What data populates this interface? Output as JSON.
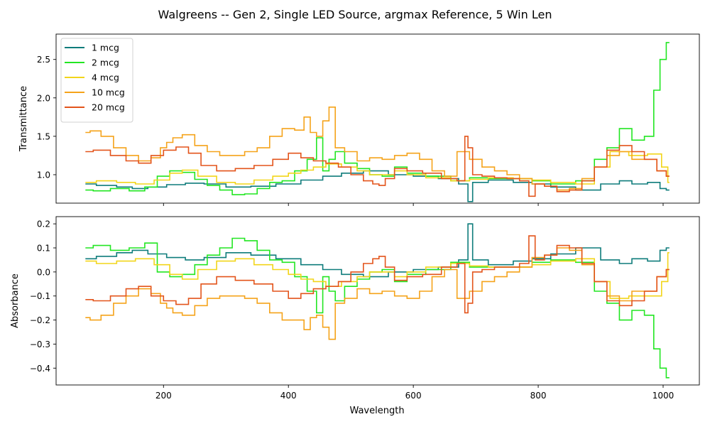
{
  "figure": {
    "title": "Walgreens -- Gen 2, Single LED Source, argmax Reference, 5 Win Len",
    "xlabel": "Wavelength"
  },
  "chart_data": [
    {
      "type": "line",
      "step": true,
      "ylabel": "Transmittance",
      "xlim": [
        28,
        1058
      ],
      "ylim": [
        0.63,
        2.83
      ],
      "xticks": [
        200,
        400,
        600,
        800,
        1000
      ],
      "xticklabels": [
        "",
        "",
        "",
        "",
        ""
      ],
      "yticks": [
        1.0,
        1.5,
        2.0,
        2.5
      ],
      "yticklabels": [
        "1.0",
        "1.5",
        "2.0",
        "2.5"
      ],
      "legend": "top-left",
      "grid": false,
      "series": [
        {
          "name": "1 mcg",
          "color": "#0e7c7b",
          "x": [
            75,
            110,
            140,
            160,
            190,
            220,
            250,
            280,
            320,
            360,
            400,
            440,
            470,
            500,
            540,
            580,
            620,
            660,
            685,
            690,
            700,
            740,
            780,
            800,
            840,
            880,
            920,
            940,
            960,
            990,
            1000,
            1010
          ],
          "y": [
            0.88,
            0.86,
            0.84,
            0.82,
            0.84,
            0.87,
            0.89,
            0.88,
            0.84,
            0.85,
            0.88,
            0.93,
            0.98,
            1.02,
            1.05,
            1.0,
            0.98,
            0.95,
            0.88,
            0.65,
            0.9,
            0.93,
            0.9,
            0.88,
            0.84,
            0.8,
            0.88,
            0.92,
            0.88,
            0.9,
            0.82,
            0.8
          ]
        },
        {
          "name": "2 mcg",
          "color": "#22e622",
          "x": [
            75,
            100,
            130,
            160,
            180,
            200,
            220,
            240,
            260,
            280,
            300,
            320,
            340,
            360,
            380,
            400,
            420,
            440,
            450,
            460,
            470,
            480,
            500,
            520,
            540,
            560,
            580,
            600,
            640,
            680,
            700,
            740,
            780,
            800,
            840,
            880,
            900,
            920,
            940,
            960,
            980,
            990,
            1000,
            1010
          ],
          "y": [
            0.8,
            0.79,
            0.82,
            0.79,
            0.84,
            0.98,
            1.05,
            1.03,
            0.94,
            0.86,
            0.8,
            0.74,
            0.75,
            0.82,
            0.9,
            0.92,
            1.05,
            1.2,
            1.48,
            1.05,
            1.2,
            1.3,
            1.15,
            1.08,
            1.0,
            0.98,
            1.1,
            1.02,
            0.98,
            0.92,
            0.96,
            0.95,
            0.95,
            0.92,
            0.88,
            0.92,
            1.2,
            1.35,
            1.6,
            1.45,
            1.5,
            2.1,
            2.5,
            2.72
          ]
        },
        {
          "name": "4 mcg",
          "color": "#f2d51a",
          "x": [
            75,
            110,
            140,
            170,
            200,
            220,
            240,
            270,
            300,
            330,
            360,
            390,
            410,
            430,
            450,
            470,
            500,
            520,
            540,
            560,
            580,
            600,
            640,
            680,
            700,
            740,
            780,
            800,
            840,
            880,
            900,
            930,
            960,
            990,
            1005,
            1010
          ],
          "y": [
            0.9,
            0.92,
            0.9,
            0.88,
            0.93,
            1.02,
            1.06,
            0.98,
            0.9,
            0.88,
            0.93,
            0.98,
            1.02,
            1.06,
            1.1,
            1.14,
            1.1,
            1.05,
            1.0,
            1.0,
            1.05,
            1.0,
            0.96,
            0.92,
            0.94,
            0.96,
            0.95,
            0.93,
            0.9,
            0.88,
            1.1,
            1.3,
            1.25,
            1.27,
            1.1,
            0.9
          ]
        },
        {
          "name": "10 mcg",
          "color": "#f5a31a",
          "x": [
            75,
            90,
            110,
            130,
            150,
            170,
            190,
            200,
            210,
            220,
            240,
            260,
            280,
            300,
            320,
            340,
            360,
            380,
            400,
            420,
            430,
            440,
            450,
            460,
            470,
            480,
            500,
            520,
            540,
            560,
            580,
            600,
            620,
            640,
            660,
            680,
            700,
            720,
            740,
            760,
            780,
            800,
            820,
            840,
            860,
            880,
            900,
            920,
            940,
            960,
            980,
            1000,
            1010
          ],
          "y": [
            1.55,
            1.57,
            1.5,
            1.35,
            1.25,
            1.18,
            1.22,
            1.35,
            1.42,
            1.48,
            1.52,
            1.38,
            1.3,
            1.25,
            1.25,
            1.3,
            1.35,
            1.5,
            1.6,
            1.58,
            1.75,
            1.55,
            1.5,
            1.7,
            1.88,
            1.35,
            1.3,
            1.18,
            1.22,
            1.2,
            1.25,
            1.28,
            1.2,
            1.05,
            0.98,
            1.3,
            1.2,
            1.1,
            1.05,
            1.0,
            0.95,
            0.88,
            0.85,
            0.8,
            0.82,
            0.95,
            1.1,
            1.25,
            1.3,
            1.2,
            1.2,
            1.05,
            0.98
          ]
        },
        {
          "name": "20 mcg",
          "color": "#e3541b",
          "x": [
            75,
            100,
            130,
            150,
            170,
            190,
            210,
            230,
            250,
            270,
            300,
            330,
            360,
            390,
            410,
            430,
            450,
            470,
            490,
            510,
            530,
            540,
            550,
            560,
            580,
            600,
            630,
            660,
            680,
            685,
            690,
            700,
            720,
            740,
            760,
            780,
            790,
            800,
            820,
            840,
            860,
            880,
            900,
            920,
            940,
            960,
            980,
            1000,
            1010
          ],
          "y": [
            1.3,
            1.32,
            1.25,
            1.18,
            1.15,
            1.25,
            1.32,
            1.36,
            1.28,
            1.12,
            1.05,
            1.08,
            1.12,
            1.2,
            1.28,
            1.22,
            1.18,
            1.15,
            1.1,
            1.0,
            0.92,
            0.88,
            0.86,
            0.95,
            1.08,
            1.05,
            1.02,
            0.95,
            0.92,
            1.5,
            1.35,
            1.0,
            0.98,
            0.96,
            0.95,
            0.92,
            0.72,
            0.88,
            0.85,
            0.78,
            0.8,
            0.92,
            1.1,
            1.32,
            1.38,
            1.3,
            1.2,
            1.05,
            0.98
          ]
        }
      ]
    },
    {
      "type": "line",
      "step": true,
      "ylabel": "Absorbance",
      "xlabel": "Wavelength",
      "xlim": [
        28,
        1058
      ],
      "ylim": [
        -0.47,
        0.23
      ],
      "xticks": [
        200,
        400,
        600,
        800,
        1000
      ],
      "xticklabels": [
        "200",
        "400",
        "600",
        "800",
        "1000"
      ],
      "yticks": [
        0.2,
        0.1,
        0.0,
        -0.1,
        -0.2,
        -0.3,
        -0.4
      ],
      "yticklabels": [
        "0.2",
        "0.1",
        "0.0",
        "−0.1",
        "−0.2",
        "−0.3",
        "−0.4"
      ],
      "grid": false,
      "series": [
        {
          "name": "1 mcg",
          "color": "#0e7c7b",
          "x": [
            75,
            110,
            140,
            160,
            190,
            220,
            250,
            280,
            320,
            360,
            400,
            440,
            470,
            500,
            540,
            580,
            620,
            660,
            685,
            690,
            700,
            740,
            780,
            800,
            840,
            880,
            920,
            940,
            960,
            990,
            1000,
            1010
          ],
          "y": [
            0.055,
            0.065,
            0.08,
            0.09,
            0.075,
            0.06,
            0.05,
            0.06,
            0.08,
            0.07,
            0.055,
            0.03,
            0.01,
            -0.01,
            -0.02,
            0.0,
            0.01,
            0.02,
            0.05,
            0.2,
            0.05,
            0.03,
            0.045,
            0.055,
            0.075,
            0.1,
            0.05,
            0.035,
            0.055,
            0.045,
            0.09,
            0.1
          ]
        },
        {
          "name": "2 mcg",
          "color": "#22e622",
          "x": [
            75,
            100,
            130,
            160,
            180,
            200,
            220,
            240,
            260,
            280,
            300,
            320,
            340,
            360,
            380,
            400,
            420,
            440,
            450,
            460,
            470,
            480,
            500,
            520,
            540,
            560,
            580,
            600,
            640,
            680,
            700,
            740,
            780,
            800,
            840,
            880,
            900,
            920,
            940,
            960,
            980,
            990,
            1000,
            1010
          ],
          "y": [
            0.1,
            0.11,
            0.09,
            0.1,
            0.12,
            0.0,
            -0.02,
            -0.01,
            0.03,
            0.07,
            0.1,
            0.14,
            0.13,
            0.09,
            0.05,
            0.04,
            -0.02,
            -0.08,
            -0.17,
            -0.02,
            -0.08,
            -0.12,
            -0.06,
            -0.03,
            0.0,
            0.01,
            -0.04,
            -0.01,
            0.01,
            0.04,
            0.02,
            0.02,
            0.02,
            0.04,
            0.05,
            0.04,
            -0.08,
            -0.13,
            -0.2,
            -0.16,
            -0.18,
            -0.32,
            -0.4,
            -0.44
          ]
        },
        {
          "name": "4 mcg",
          "color": "#f2d51a",
          "x": [
            75,
            110,
            140,
            170,
            200,
            220,
            240,
            270,
            300,
            330,
            360,
            390,
            410,
            430,
            450,
            470,
            500,
            520,
            540,
            560,
            580,
            600,
            640,
            680,
            700,
            740,
            780,
            800,
            840,
            880,
            900,
            930,
            960,
            990,
            1005,
            1010
          ],
          "y": [
            0.045,
            0.035,
            0.045,
            0.055,
            0.03,
            -0.01,
            -0.03,
            0.01,
            0.045,
            0.055,
            0.03,
            0.01,
            -0.01,
            -0.03,
            -0.04,
            -0.06,
            -0.04,
            -0.02,
            0.0,
            0.0,
            -0.02,
            0.0,
            0.02,
            0.035,
            0.025,
            0.02,
            0.02,
            0.03,
            0.045,
            0.055,
            -0.04,
            -0.11,
            -0.1,
            -0.1,
            -0.04,
            0.08
          ]
        },
        {
          "name": "10 mcg",
          "color": "#f5a31a",
          "x": [
            75,
            90,
            110,
            130,
            150,
            170,
            190,
            200,
            210,
            220,
            240,
            260,
            280,
            300,
            320,
            340,
            360,
            380,
            400,
            420,
            430,
            440,
            450,
            460,
            470,
            480,
            500,
            520,
            540,
            560,
            580,
            600,
            620,
            640,
            660,
            680,
            700,
            720,
            740,
            760,
            780,
            800,
            820,
            840,
            860,
            880,
            900,
            920,
            940,
            960,
            980,
            1000,
            1010
          ],
          "y": [
            -0.19,
            -0.2,
            -0.18,
            -0.13,
            -0.1,
            -0.07,
            -0.09,
            -0.13,
            -0.15,
            -0.17,
            -0.18,
            -0.14,
            -0.11,
            -0.1,
            -0.1,
            -0.11,
            -0.13,
            -0.17,
            -0.2,
            -0.2,
            -0.24,
            -0.19,
            -0.18,
            -0.23,
            -0.28,
            -0.13,
            -0.11,
            -0.07,
            -0.09,
            -0.08,
            -0.1,
            -0.11,
            -0.08,
            -0.02,
            0.01,
            -0.11,
            -0.08,
            -0.04,
            -0.02,
            0.0,
            0.02,
            0.06,
            0.07,
            0.1,
            0.09,
            0.03,
            -0.04,
            -0.1,
            -0.12,
            -0.08,
            -0.08,
            -0.02,
            0.01
          ]
        },
        {
          "name": "20 mcg",
          "color": "#e3541b",
          "x": [
            75,
            100,
            130,
            150,
            170,
            190,
            210,
            230,
            250,
            270,
            300,
            330,
            360,
            390,
            410,
            430,
            450,
            470,
            490,
            510,
            530,
            540,
            550,
            560,
            580,
            600,
            630,
            660,
            680,
            685,
            690,
            700,
            720,
            740,
            760,
            780,
            790,
            800,
            820,
            840,
            860,
            880,
            900,
            920,
            940,
            960,
            980,
            1000,
            1010
          ],
          "y": [
            -0.115,
            -0.12,
            -0.1,
            -0.07,
            -0.06,
            -0.1,
            -0.12,
            -0.135,
            -0.11,
            -0.05,
            -0.02,
            -0.035,
            -0.05,
            -0.08,
            -0.11,
            -0.09,
            -0.07,
            -0.06,
            -0.04,
            0.0,
            0.035,
            0.055,
            0.065,
            0.02,
            -0.035,
            -0.02,
            -0.01,
            0.02,
            0.035,
            -0.17,
            -0.13,
            0.0,
            0.01,
            0.02,
            0.02,
            0.035,
            0.15,
            0.05,
            0.07,
            0.11,
            0.1,
            0.035,
            -0.04,
            -0.12,
            -0.14,
            -0.12,
            -0.08,
            -0.02,
            0.01
          ]
        }
      ]
    }
  ]
}
